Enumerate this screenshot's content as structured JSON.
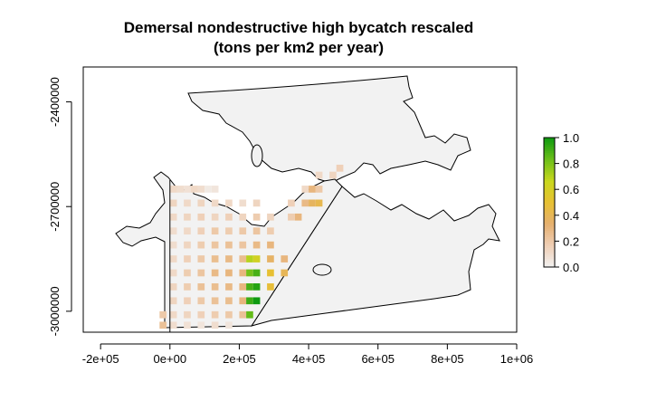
{
  "chart_data": {
    "type": "heatmap",
    "title": "Demersal nondestructive high bycatch rescaled",
    "subtitle": "(tons per km2 per year)",
    "xlabel": "",
    "ylabel": "",
    "xlim": [
      -250000,
      1000000
    ],
    "ylim": [
      -3060000,
      -2300000
    ],
    "x_ticks": [
      -200000,
      0,
      200000,
      400000,
      600000,
      800000,
      1000000
    ],
    "x_tick_labels": [
      "-2e+05",
      "0e+00",
      "2e+05",
      "4e+05",
      "6e+05",
      "8e+05",
      "1e+06"
    ],
    "y_ticks": [
      -3000000,
      -2700000,
      -2400000
    ],
    "y_tick_labels": [
      "-3000000",
      "-2700000",
      "-2400000"
    ],
    "legend": {
      "placement": "right",
      "range": [
        0.0,
        1.0
      ],
      "tick_values": [
        0.0,
        0.2,
        0.4,
        0.6,
        0.8,
        1.0
      ],
      "tick_labels": [
        "0.0",
        "0.2",
        "0.4",
        "0.6",
        "0.8",
        "1.0"
      ],
      "colors": [
        "#f2f2f2",
        "#efcfb6",
        "#e6b070",
        "#e7c033",
        "#c9d81e",
        "#6cbf1a",
        "#0f9a10"
      ]
    },
    "grid": false,
    "cell_size": 20000,
    "cells": [
      {
        "x": 10000,
        "y": -2650000,
        "v": 0.12
      },
      {
        "x": 30000,
        "y": -2650000,
        "v": 0.1
      },
      {
        "x": 50000,
        "y": -2650000,
        "v": 0.08
      },
      {
        "x": 70000,
        "y": -2650000,
        "v": 0.12
      },
      {
        "x": 90000,
        "y": -2650000,
        "v": 0.1
      },
      {
        "x": 110000,
        "y": -2650000,
        "v": 0.04
      },
      {
        "x": 130000,
        "y": -2650000,
        "v": 0.06
      },
      {
        "x": 10000,
        "y": -2690000,
        "v": 0.14
      },
      {
        "x": 50000,
        "y": -2690000,
        "v": 0.12
      },
      {
        "x": 90000,
        "y": -2690000,
        "v": 0.14
      },
      {
        "x": 130000,
        "y": -2690000,
        "v": 0.12
      },
      {
        "x": 170000,
        "y": -2690000,
        "v": 0.12
      },
      {
        "x": 210000,
        "y": -2690000,
        "v": 0.1
      },
      {
        "x": 250000,
        "y": -2690000,
        "v": 0.14
      },
      {
        "x": 10000,
        "y": -2730000,
        "v": 0.12
      },
      {
        "x": 50000,
        "y": -2730000,
        "v": 0.14
      },
      {
        "x": 90000,
        "y": -2730000,
        "v": 0.16
      },
      {
        "x": 130000,
        "y": -2730000,
        "v": 0.14
      },
      {
        "x": 170000,
        "y": -2730000,
        "v": 0.16
      },
      {
        "x": 210000,
        "y": -2730000,
        "v": 0.14
      },
      {
        "x": 250000,
        "y": -2730000,
        "v": 0.18
      },
      {
        "x": 290000,
        "y": -2730000,
        "v": 0.14
      },
      {
        "x": 10000,
        "y": -2770000,
        "v": 0.1
      },
      {
        "x": 50000,
        "y": -2770000,
        "v": 0.12
      },
      {
        "x": 90000,
        "y": -2770000,
        "v": 0.16
      },
      {
        "x": 130000,
        "y": -2770000,
        "v": 0.2
      },
      {
        "x": 170000,
        "y": -2770000,
        "v": 0.18
      },
      {
        "x": 210000,
        "y": -2770000,
        "v": 0.2
      },
      {
        "x": 250000,
        "y": -2770000,
        "v": 0.22
      },
      {
        "x": 290000,
        "y": -2770000,
        "v": 0.18
      },
      {
        "x": 10000,
        "y": -2810000,
        "v": 0.1
      },
      {
        "x": 50000,
        "y": -2810000,
        "v": 0.14
      },
      {
        "x": 90000,
        "y": -2810000,
        "v": 0.18
      },
      {
        "x": 130000,
        "y": -2810000,
        "v": 0.22
      },
      {
        "x": 170000,
        "y": -2810000,
        "v": 0.24
      },
      {
        "x": 210000,
        "y": -2810000,
        "v": 0.22
      },
      {
        "x": 250000,
        "y": -2810000,
        "v": 0.28
      },
      {
        "x": 290000,
        "y": -2810000,
        "v": 0.3
      },
      {
        "x": 10000,
        "y": -2850000,
        "v": 0.12
      },
      {
        "x": 50000,
        "y": -2850000,
        "v": 0.16
      },
      {
        "x": 90000,
        "y": -2850000,
        "v": 0.2
      },
      {
        "x": 130000,
        "y": -2850000,
        "v": 0.26
      },
      {
        "x": 170000,
        "y": -2850000,
        "v": 0.28
      },
      {
        "x": 210000,
        "y": -2850000,
        "v": 0.26
      },
      {
        "x": 230000,
        "y": -2850000,
        "v": 0.7
      },
      {
        "x": 250000,
        "y": -2850000,
        "v": 0.62
      },
      {
        "x": 290000,
        "y": -2850000,
        "v": 0.36
      },
      {
        "x": 330000,
        "y": -2850000,
        "v": 0.3
      },
      {
        "x": 10000,
        "y": -2890000,
        "v": 0.12
      },
      {
        "x": 50000,
        "y": -2890000,
        "v": 0.18
      },
      {
        "x": 90000,
        "y": -2890000,
        "v": 0.22
      },
      {
        "x": 130000,
        "y": -2890000,
        "v": 0.28
      },
      {
        "x": 170000,
        "y": -2890000,
        "v": 0.3
      },
      {
        "x": 210000,
        "y": -2890000,
        "v": 0.3
      },
      {
        "x": 230000,
        "y": -2890000,
        "v": 0.82
      },
      {
        "x": 250000,
        "y": -2890000,
        "v": 0.9
      },
      {
        "x": 290000,
        "y": -2890000,
        "v": 0.5
      },
      {
        "x": 330000,
        "y": -2890000,
        "v": 0.4
      },
      {
        "x": 10000,
        "y": -2930000,
        "v": 0.14
      },
      {
        "x": 50000,
        "y": -2930000,
        "v": 0.18
      },
      {
        "x": 90000,
        "y": -2930000,
        "v": 0.24
      },
      {
        "x": 130000,
        "y": -2930000,
        "v": 0.26
      },
      {
        "x": 170000,
        "y": -2930000,
        "v": 0.28
      },
      {
        "x": 210000,
        "y": -2930000,
        "v": 0.3
      },
      {
        "x": 230000,
        "y": -2930000,
        "v": 0.9
      },
      {
        "x": 250000,
        "y": -2930000,
        "v": 0.96
      },
      {
        "x": 290000,
        "y": -2930000,
        "v": 0.48
      },
      {
        "x": 10000,
        "y": -2970000,
        "v": 0.14
      },
      {
        "x": 50000,
        "y": -2970000,
        "v": 0.16
      },
      {
        "x": 90000,
        "y": -2970000,
        "v": 0.2
      },
      {
        "x": 130000,
        "y": -2970000,
        "v": 0.24
      },
      {
        "x": 170000,
        "y": -2970000,
        "v": 0.26
      },
      {
        "x": 210000,
        "y": -2970000,
        "v": 0.3
      },
      {
        "x": 230000,
        "y": -2970000,
        "v": 0.92
      },
      {
        "x": 250000,
        "y": -2970000,
        "v": 1.0
      },
      {
        "x": 10000,
        "y": -3010000,
        "v": 0.12
      },
      {
        "x": 50000,
        "y": -3010000,
        "v": 0.14
      },
      {
        "x": 90000,
        "y": -3010000,
        "v": 0.16
      },
      {
        "x": 130000,
        "y": -3010000,
        "v": 0.18
      },
      {
        "x": 170000,
        "y": -3010000,
        "v": 0.2
      },
      {
        "x": 210000,
        "y": -3010000,
        "v": 0.24
      },
      {
        "x": 230000,
        "y": -3010000,
        "v": 0.85
      },
      {
        "x": -20000,
        "y": -3010000,
        "v": 0.2
      },
      {
        "x": -20000,
        "y": -3040000,
        "v": 0.24
      },
      {
        "x": 10000,
        "y": -3040000,
        "v": 0.1
      },
      {
        "x": 50000,
        "y": -3040000,
        "v": 0.08
      },
      {
        "x": 90000,
        "y": -3040000,
        "v": 0.06
      },
      {
        "x": 130000,
        "y": -3040000,
        "v": 0.1
      },
      {
        "x": 170000,
        "y": -3040000,
        "v": 0.06
      },
      {
        "x": 370000,
        "y": -2730000,
        "v": 0.3
      },
      {
        "x": 390000,
        "y": -2690000,
        "v": 0.28
      },
      {
        "x": 430000,
        "y": -2650000,
        "v": 0.2
      },
      {
        "x": 470000,
        "y": -2610000,
        "v": 0.14
      },
      {
        "x": 490000,
        "y": -2590000,
        "v": 0.16
      },
      {
        "x": 430000,
        "y": -2610000,
        "v": 0.12
      },
      {
        "x": 410000,
        "y": -2650000,
        "v": 0.3
      },
      {
        "x": 390000,
        "y": -2650000,
        "v": 0.12
      },
      {
        "x": 350000,
        "y": -2690000,
        "v": 0.16
      },
      {
        "x": 350000,
        "y": -2730000,
        "v": 0.18
      },
      {
        "x": 410000,
        "y": -2690000,
        "v": 0.38
      },
      {
        "x": 430000,
        "y": -2690000,
        "v": 0.42
      }
    ]
  }
}
